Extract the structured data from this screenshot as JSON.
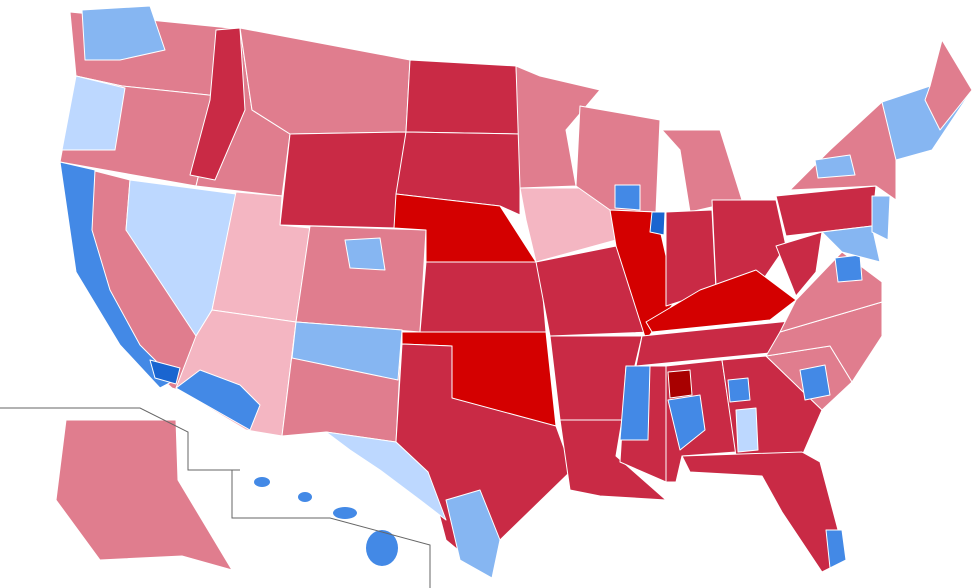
{
  "map": {
    "palette": {
      "safe_r": "#d40000",
      "likely_r": "#c92a45",
      "lean_r": "#e07d8e",
      "tilt_r": "#f4b6c2",
      "very_strong_r": "#a80000",
      "tilt_d": "#bdd8ff",
      "lean_d": "#86b6f2",
      "likely_d": "#4389e6",
      "safe_d": "#1a65d0"
    }
  }
}
